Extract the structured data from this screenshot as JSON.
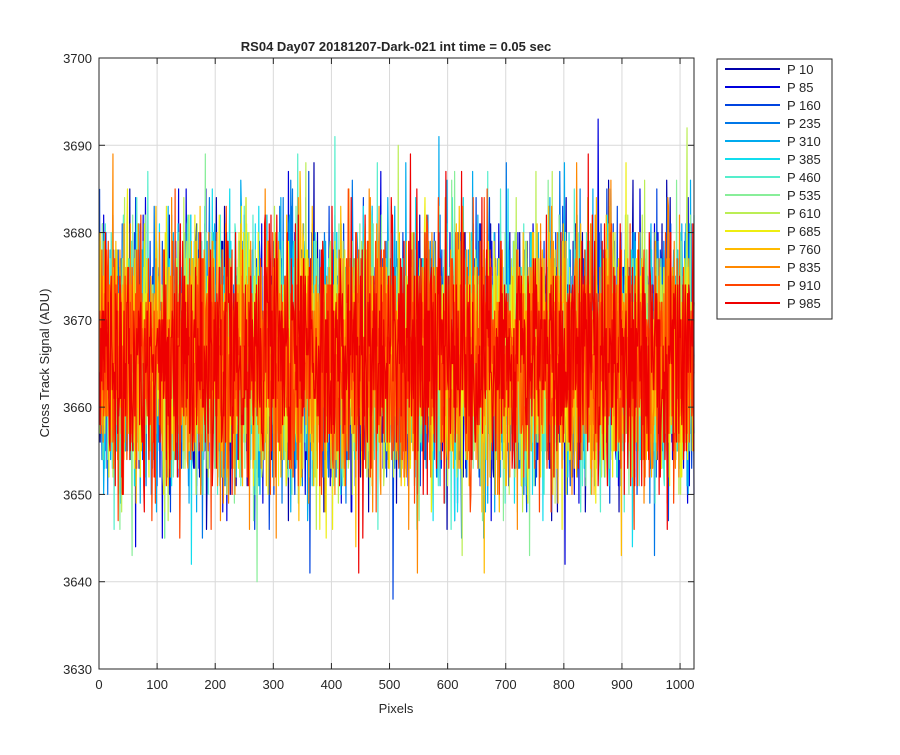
{
  "chart_data": {
    "type": "line",
    "title": "RS04 Day07 20181207-Dark-021 int time = 0.05 sec",
    "xlabel": "Pixels",
    "ylabel": "Cross Track Signal (ADU)",
    "xlim": [
      0,
      1024
    ],
    "ylim": [
      3630,
      3700
    ],
    "xticks": [
      0,
      100,
      200,
      300,
      400,
      500,
      600,
      700,
      800,
      900,
      1000
    ],
    "yticks": [
      3630,
      3640,
      3650,
      3660,
      3670,
      3680,
      3690,
      3700
    ],
    "grid": true,
    "legend_position": "outside-right",
    "noise_profile": {
      "mean": 3666,
      "std": 7,
      "n_points": 1024,
      "min_observed": 3635,
      "max_observed": 3694
    },
    "series": [
      {
        "name": "P 10",
        "color": "#0000AA"
      },
      {
        "name": "P 85",
        "color": "#0000DD"
      },
      {
        "name": "P 160",
        "color": "#0044E0"
      },
      {
        "name": "P 235",
        "color": "#0077E8"
      },
      {
        "name": "P 310",
        "color": "#00AAEE"
      },
      {
        "name": "P 385",
        "color": "#11DDEE"
      },
      {
        "name": "P 460",
        "color": "#55EECC"
      },
      {
        "name": "P 535",
        "color": "#88EE99"
      },
      {
        "name": "P 610",
        "color": "#BBEE55"
      },
      {
        "name": "P 685",
        "color": "#EEEE11"
      },
      {
        "name": "P 760",
        "color": "#FFBB00"
      },
      {
        "name": "P 835",
        "color": "#FF8800"
      },
      {
        "name": "P 910",
        "color": "#FF4400"
      },
      {
        "name": "P 985",
        "color": "#EE0000"
      }
    ]
  }
}
